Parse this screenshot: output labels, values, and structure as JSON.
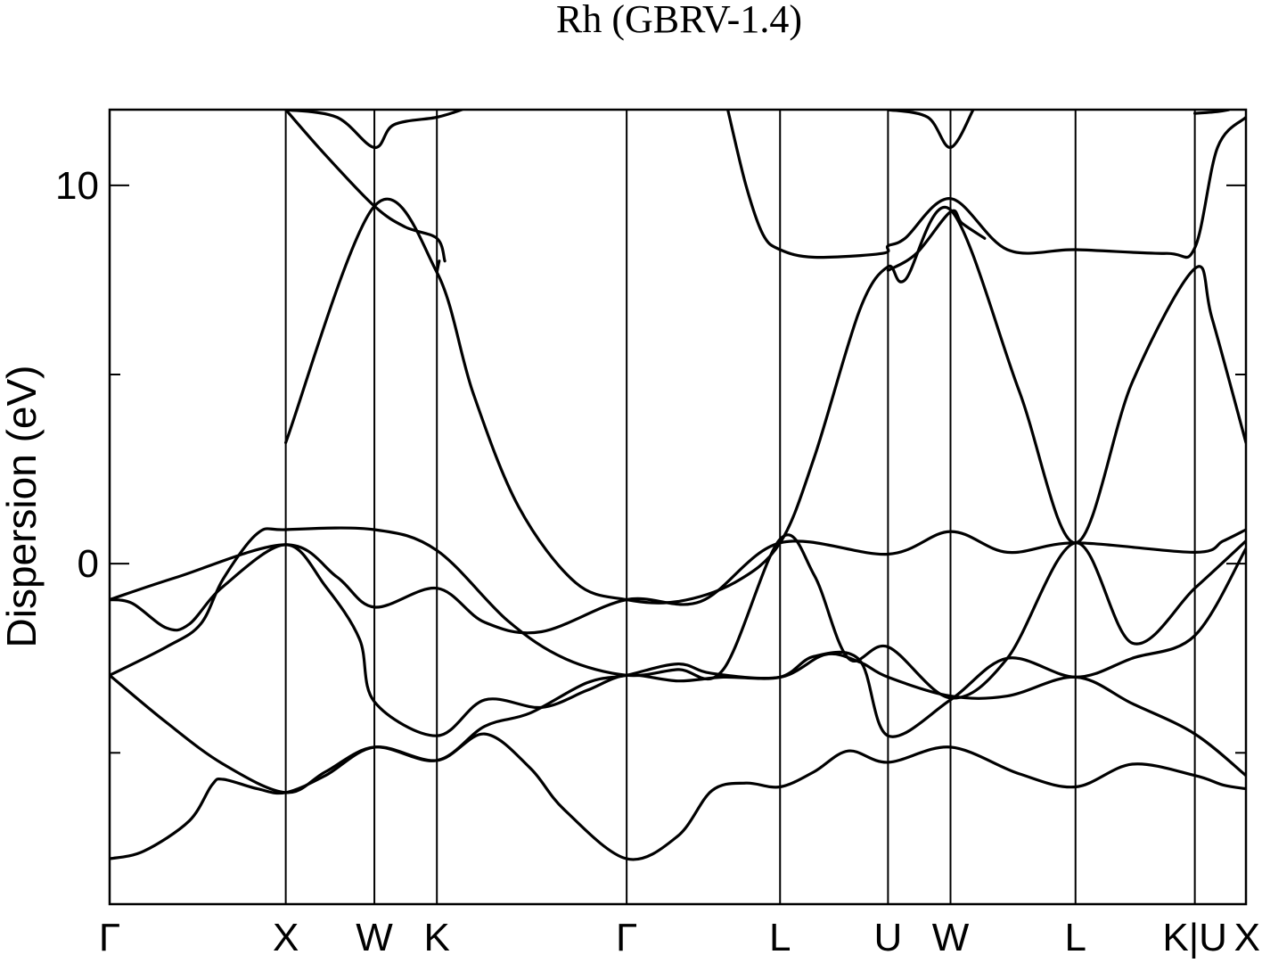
{
  "chart_data": {
    "type": "line",
    "title": "Rh (GBRV-1.4)",
    "xlabel": "",
    "ylabel": "Dispersion (eV)",
    "ylim": [
      -9.0,
      12.0
    ],
    "yticks_major": [
      0,
      10
    ],
    "yticks_minor": [
      -5,
      5
    ],
    "grid": false,
    "kpath_positions": [
      0,
      0.155,
      0.233,
      0.288,
      0.455,
      0.59,
      0.685,
      0.74,
      0.85,
      0.955,
      1.0
    ],
    "kpath_labels": [
      "Γ",
      "X",
      "W",
      "K",
      "Γ",
      "L",
      "U",
      "W",
      "L",
      "K|U",
      "X"
    ],
    "series": [
      {
        "points": [
          [
            0,
            -7.8
          ],
          [
            0.03,
            -7.6
          ],
          [
            0.07,
            -6.8
          ],
          [
            0.09,
            -5.85
          ],
          [
            0.1,
            -5.7
          ],
          [
            0.13,
            -5.95
          ],
          [
            0.155,
            -6.05
          ],
          [
            0.19,
            -5.6
          ],
          [
            0.233,
            -4.85
          ],
          [
            0.288,
            -5.2
          ],
          [
            0.33,
            -4.5
          ],
          [
            0.37,
            -5.4
          ],
          [
            0.4,
            -6.5
          ],
          [
            0.455,
            -7.8
          ],
          [
            0.5,
            -7.2
          ],
          [
            0.53,
            -6.0
          ],
          [
            0.56,
            -5.8
          ],
          [
            0.59,
            -5.9
          ],
          [
            0.62,
            -5.5
          ],
          [
            0.65,
            -4.95
          ],
          [
            0.685,
            -5.25
          ],
          [
            0.74,
            -4.85
          ],
          [
            0.8,
            -5.55
          ],
          [
            0.85,
            -5.9
          ],
          [
            0.9,
            -5.3
          ],
          [
            0.955,
            -5.6
          ],
          [
            0.98,
            -5.85
          ],
          [
            1.0,
            -5.95
          ]
        ]
      },
      {
        "points": [
          [
            0,
            -2.95
          ],
          [
            0.05,
            -4.2
          ],
          [
            0.1,
            -5.3
          ],
          [
            0.155,
            -6.05
          ],
          [
            0.19,
            -5.5
          ],
          [
            0.233,
            -4.85
          ],
          [
            0.288,
            -5.2
          ],
          [
            0.33,
            -4.3
          ],
          [
            0.37,
            -3.95
          ],
          [
            0.42,
            -3.15
          ],
          [
            0.455,
            -2.95
          ],
          [
            0.5,
            -2.65
          ],
          [
            0.53,
            -2.9
          ],
          [
            0.59,
            -3.0
          ],
          [
            0.63,
            -2.4
          ],
          [
            0.66,
            -2.6
          ],
          [
            0.685,
            -3.0
          ],
          [
            0.74,
            -3.5
          ],
          [
            0.79,
            -3.5
          ],
          [
            0.85,
            -3.0
          ],
          [
            0.9,
            -3.7
          ],
          [
            0.955,
            -4.5
          ],
          [
            1.0,
            -5.6
          ]
        ]
      },
      {
        "points": [
          [
            0,
            -0.95
          ],
          [
            0.02,
            -1.05
          ],
          [
            0.05,
            -1.7
          ],
          [
            0.07,
            -1.6
          ],
          [
            0.1,
            -0.6
          ],
          [
            0.155,
            0.5
          ],
          [
            0.19,
            -0.6
          ],
          [
            0.22,
            -2.0
          ],
          [
            0.233,
            -3.65
          ],
          [
            0.288,
            -4.55
          ],
          [
            0.33,
            -3.6
          ],
          [
            0.38,
            -3.8
          ],
          [
            0.42,
            -3.35
          ],
          [
            0.455,
            -2.95
          ],
          [
            0.5,
            -3.1
          ],
          [
            0.54,
            -3.0
          ],
          [
            0.59,
            -3.0
          ],
          [
            0.62,
            -2.45
          ],
          [
            0.66,
            -2.55
          ],
          [
            0.685,
            -4.55
          ],
          [
            0.74,
            -3.6
          ],
          [
            0.79,
            -2.5
          ],
          [
            0.85,
            -3.0
          ],
          [
            0.9,
            -2.5
          ],
          [
            0.955,
            -1.9
          ],
          [
            1.0,
            0.4
          ]
        ]
      },
      {
        "points": [
          [
            0,
            -2.95
          ],
          [
            0.05,
            -2.2
          ],
          [
            0.08,
            -1.6
          ],
          [
            0.1,
            -0.4
          ],
          [
            0.13,
            0.8
          ],
          [
            0.155,
            0.9
          ],
          [
            0.233,
            0.9
          ],
          [
            0.288,
            0.35
          ],
          [
            0.35,
            -1.5
          ],
          [
            0.4,
            -2.5
          ],
          [
            0.455,
            -2.95
          ],
          [
            0.5,
            -2.8
          ],
          [
            0.54,
            -2.8
          ],
          [
            0.59,
            0.65
          ],
          [
            0.62,
            -0.3
          ],
          [
            0.65,
            -2.5
          ],
          [
            0.685,
            -2.2
          ],
          [
            0.74,
            -3.55
          ],
          [
            0.79,
            -2.5
          ],
          [
            0.85,
            0.55
          ],
          [
            0.9,
            -2.1
          ],
          [
            0.955,
            -0.65
          ],
          [
            1.0,
            0.6
          ]
        ]
      },
      {
        "points": [
          [
            0,
            -0.95
          ],
          [
            0.06,
            -0.35
          ],
          [
            0.155,
            0.5
          ],
          [
            0.2,
            -0.35
          ],
          [
            0.233,
            -1.15
          ],
          [
            0.288,
            -0.65
          ],
          [
            0.33,
            -1.55
          ],
          [
            0.38,
            -1.8
          ],
          [
            0.455,
            -0.95
          ],
          [
            0.52,
            -1.0
          ],
          [
            0.59,
            0.55
          ],
          [
            0.685,
            0.25
          ],
          [
            0.74,
            0.85
          ],
          [
            0.79,
            0.3
          ],
          [
            0.85,
            0.55
          ],
          [
            0.955,
            0.3
          ],
          [
            0.98,
            0.6
          ],
          [
            1.0,
            0.9
          ]
        ]
      },
      {
        "points": [
          [
            0.155,
            3.2
          ],
          [
            0.233,
            9.45
          ],
          [
            0.288,
            7.7
          ],
          [
            0.32,
            4.5
          ],
          [
            0.36,
            1.5
          ],
          [
            0.41,
            -0.5
          ],
          [
            0.455,
            -0.95
          ],
          [
            0.5,
            -1.0
          ],
          [
            0.55,
            -0.5
          ],
          [
            0.59,
            0.55
          ],
          [
            0.62,
            2.8
          ],
          [
            0.66,
            6.7
          ],
          [
            0.685,
            7.85
          ],
          [
            0.7,
            7.5
          ],
          [
            0.74,
            9.35
          ],
          [
            0.8,
            4.6
          ],
          [
            0.85,
            0.55
          ],
          [
            0.9,
            4.8
          ],
          [
            0.955,
            7.8
          ],
          [
            0.97,
            6.5
          ],
          [
            1.0,
            3.2
          ]
        ]
      },
      {
        "points": [
          [
            0.155,
            12.0
          ],
          [
            0.2,
            11.8
          ],
          [
            0.233,
            11.0
          ],
          [
            0.25,
            11.6
          ],
          [
            0.288,
            11.8
          ],
          [
            0.31,
            12.0
          ]
        ]
      },
      {
        "points": [
          [
            0.155,
            12.0
          ],
          [
            0.19,
            10.8
          ],
          [
            0.233,
            9.45
          ],
          [
            0.26,
            8.9
          ],
          [
            0.288,
            8.6
          ],
          [
            0.295,
            8.0
          ]
        ]
      },
      {
        "points": [
          [
            0.29,
            8.0
          ],
          [
            0.288,
            7.7
          ]
        ]
      },
      {
        "points": [
          [
            0.544,
            12.0
          ],
          [
            0.56,
            10.0
          ],
          [
            0.575,
            8.7
          ],
          [
            0.59,
            8.3
          ],
          [
            0.62,
            8.1
          ],
          [
            0.68,
            8.2
          ],
          [
            0.685,
            8.4
          ],
          [
            0.7,
            8.6
          ],
          [
            0.74,
            9.65
          ],
          [
            0.79,
            8.3
          ],
          [
            0.85,
            8.3
          ],
          [
            0.93,
            8.2
          ],
          [
            0.955,
            8.35
          ],
          [
            0.975,
            11.0
          ],
          [
            1.0,
            11.8
          ]
        ]
      },
      {
        "points": [
          [
            0.685,
            12.0
          ],
          [
            0.72,
            11.8
          ],
          [
            0.74,
            11.0
          ],
          [
            0.76,
            12.0
          ]
        ]
      },
      {
        "points": [
          [
            0.955,
            11.9
          ],
          [
            0.975,
            11.95
          ],
          [
            0.985,
            12.0
          ]
        ]
      },
      {
        "points": [
          [
            0.685,
            7.75
          ],
          [
            0.71,
            8.2
          ],
          [
            0.74,
            9.3
          ],
          [
            0.75,
            9.0
          ],
          [
            0.77,
            8.6
          ]
        ]
      }
    ]
  }
}
